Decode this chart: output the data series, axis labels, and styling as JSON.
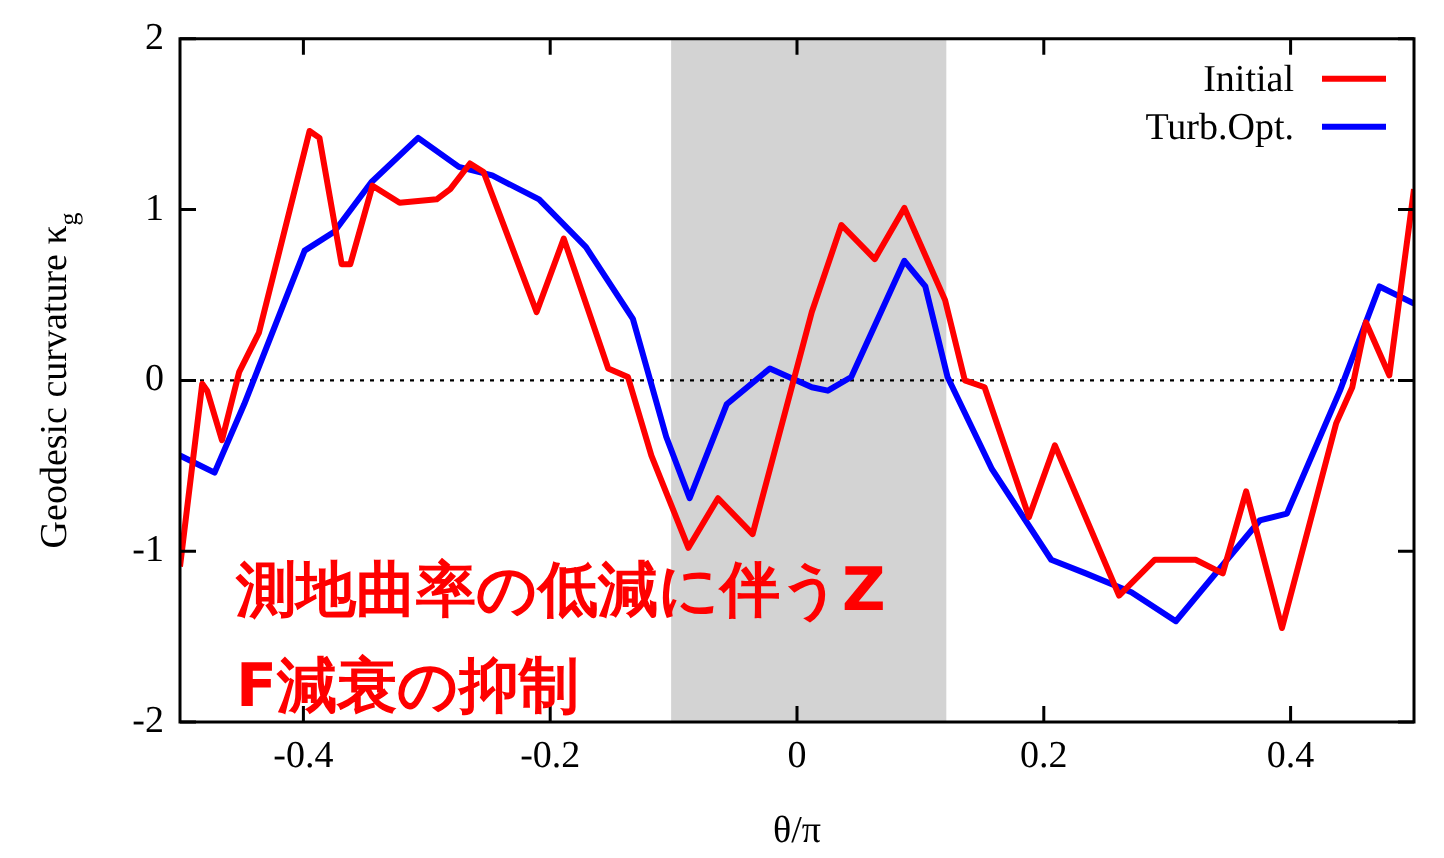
{
  "chart_data": {
    "type": "line",
    "xlabel": "θ/π",
    "ylabel": "Geodesic curvature κ$_{g}$",
    "xlim": [
      -0.5,
      0.5
    ],
    "xticks": [
      -0.4,
      -0.2,
      0,
      0.2,
      0.4
    ],
    "ylim": [
      -2,
      2
    ],
    "yticks": [
      -2,
      -1,
      0,
      1,
      2
    ],
    "grid": false,
    "legend": "top right",
    "marker": "none",
    "line_style": "solid",
    "series": [
      {
        "name": "Initial",
        "color": "#ff0000",
        "x": [
          -0.5,
          -0.482,
          -0.478,
          -0.466,
          -0.452,
          -0.436,
          -0.395,
          -0.387,
          -0.369,
          -0.362,
          -0.344,
          -0.322,
          -0.292,
          -0.281,
          -0.265,
          -0.254,
          -0.211,
          -0.189,
          -0.153,
          -0.137,
          -0.118,
          -0.088,
          -0.064,
          -0.036,
          0.012,
          0.036,
          0.063,
          0.087,
          0.12,
          0.136,
          0.152,
          0.188,
          0.209,
          0.261,
          0.29,
          0.323,
          0.345,
          0.364,
          0.393,
          0.437,
          0.45,
          0.461,
          0.48,
          0.5
        ],
        "values": [
          -1.09,
          -0.02,
          -0.06,
          -0.35,
          0.05,
          0.28,
          1.46,
          1.42,
          0.68,
          0.68,
          1.14,
          1.04,
          1.06,
          1.12,
          1.27,
          1.22,
          0.4,
          0.83,
          0.07,
          0.02,
          -0.44,
          -0.98,
          -0.69,
          -0.9,
          0.4,
          0.91,
          0.71,
          1.01,
          0.47,
          0.0,
          -0.04,
          -0.8,
          -0.38,
          -1.26,
          -1.05,
          -1.05,
          -1.13,
          -0.65,
          -1.45,
          -0.25,
          -0.04,
          0.34,
          0.03,
          1.12
        ]
      },
      {
        "name": "Turb.Opt.",
        "color": "#0000ff",
        "x": [
          -0.5,
          -0.472,
          -0.448,
          -0.399,
          -0.375,
          -0.345,
          -0.307,
          -0.274,
          -0.247,
          -0.209,
          -0.171,
          -0.133,
          -0.106,
          -0.087,
          -0.057,
          -0.022,
          0.012,
          0.025,
          0.044,
          0.087,
          0.104,
          0.122,
          0.158,
          0.206,
          0.234,
          0.271,
          0.307,
          0.375,
          0.397,
          0.44,
          0.472,
          0.5
        ],
        "values": [
          -0.44,
          -0.54,
          -0.14,
          0.76,
          0.87,
          1.16,
          1.42,
          1.25,
          1.2,
          1.06,
          0.78,
          0.36,
          -0.33,
          -0.69,
          -0.14,
          0.07,
          -0.04,
          -0.06,
          0.02,
          0.7,
          0.55,
          0.02,
          -0.52,
          -1.05,
          -1.13,
          -1.24,
          -1.41,
          -0.82,
          -0.78,
          -0.06,
          0.55,
          0.45
        ]
      }
    ],
    "ref_lines": [
      {
        "axis": "y",
        "value": 0,
        "color": "#000000",
        "line_style": "dotted"
      }
    ],
    "bands": [
      {
        "axis": "x",
        "from": -0.102,
        "to": 0.121,
        "color": "#d3d3d3"
      }
    ],
    "annotations": [
      "測地曲率の低減に伴うZF減衰の抑制"
    ]
  }
}
